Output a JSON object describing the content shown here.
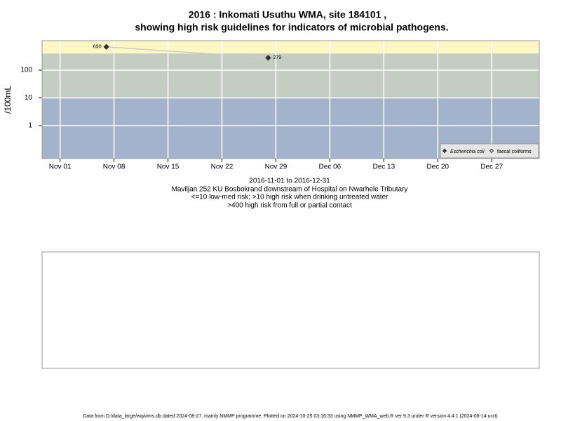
{
  "chart_data": {
    "type": "line",
    "title": "2016 : Inkomati Usuthu WMA, site 184101 ,",
    "title_line2": "showing high risk guidelines for indicators of microbial pathogens.",
    "ylabel": "/100mL",
    "subtitle": [
      "2016-11-01 to 2016-12-31",
      "Maviljan 252 KU Bosbokrand downstream of Hospital on Nwarhele Tributary",
      "<=10 low-med risk; >10 high risk when drinking untreated water",
      ">400 high risk from full or partial contact"
    ],
    "x": [
      "2016-11-07",
      "2016-11-28"
    ],
    "series": [
      {
        "name": "Escherichia coli",
        "color": "#333333",
        "filled": true,
        "values": [
          690,
          279
        ]
      },
      {
        "name": "faecal coliforms",
        "color": "#333333",
        "filled": false,
        "values": [
          null,
          null
        ]
      }
    ],
    "line_color": "#cccccc",
    "log_y": true,
    "ylim": [
      0.065,
      1150
    ],
    "yticks": [
      1,
      10,
      100
    ],
    "xlim": [
      "2016-10-29T16:00",
      "2017-01-02T04:00"
    ],
    "xticks": [
      {
        "value": "2016-11-01",
        "label": "Nov 01"
      },
      {
        "value": "2016-11-08",
        "label": "Nov 08"
      },
      {
        "value": "2016-11-15",
        "label": "Nov 15"
      },
      {
        "value": "2016-11-22",
        "label": "Nov 22"
      },
      {
        "value": "2016-11-29",
        "label": "Nov 29"
      },
      {
        "value": "2016-12-06",
        "label": "Dec 06"
      },
      {
        "value": "2016-12-13",
        "label": "Dec 13"
      },
      {
        "value": "2016-12-20",
        "label": "Dec 20"
      },
      {
        "value": "2016-12-27",
        "label": "Dec 27"
      }
    ],
    "thresholds": [
      10,
      400
    ],
    "band_colors": [
      "#a3b3cc",
      "#c3cdc2",
      "#fdf7c3"
    ],
    "grid": true,
    "legend": "bottom-right",
    "footer": "Data from D:/data_large/wq/wms.db dated 2024-08-27, mainly NMMP programme. Plotted on 2024-10-25 03:16:33 using NMMP_WMA_web.R ver 9.3 under R version 4.4.1 (2024-06-14 ucrt)"
  }
}
